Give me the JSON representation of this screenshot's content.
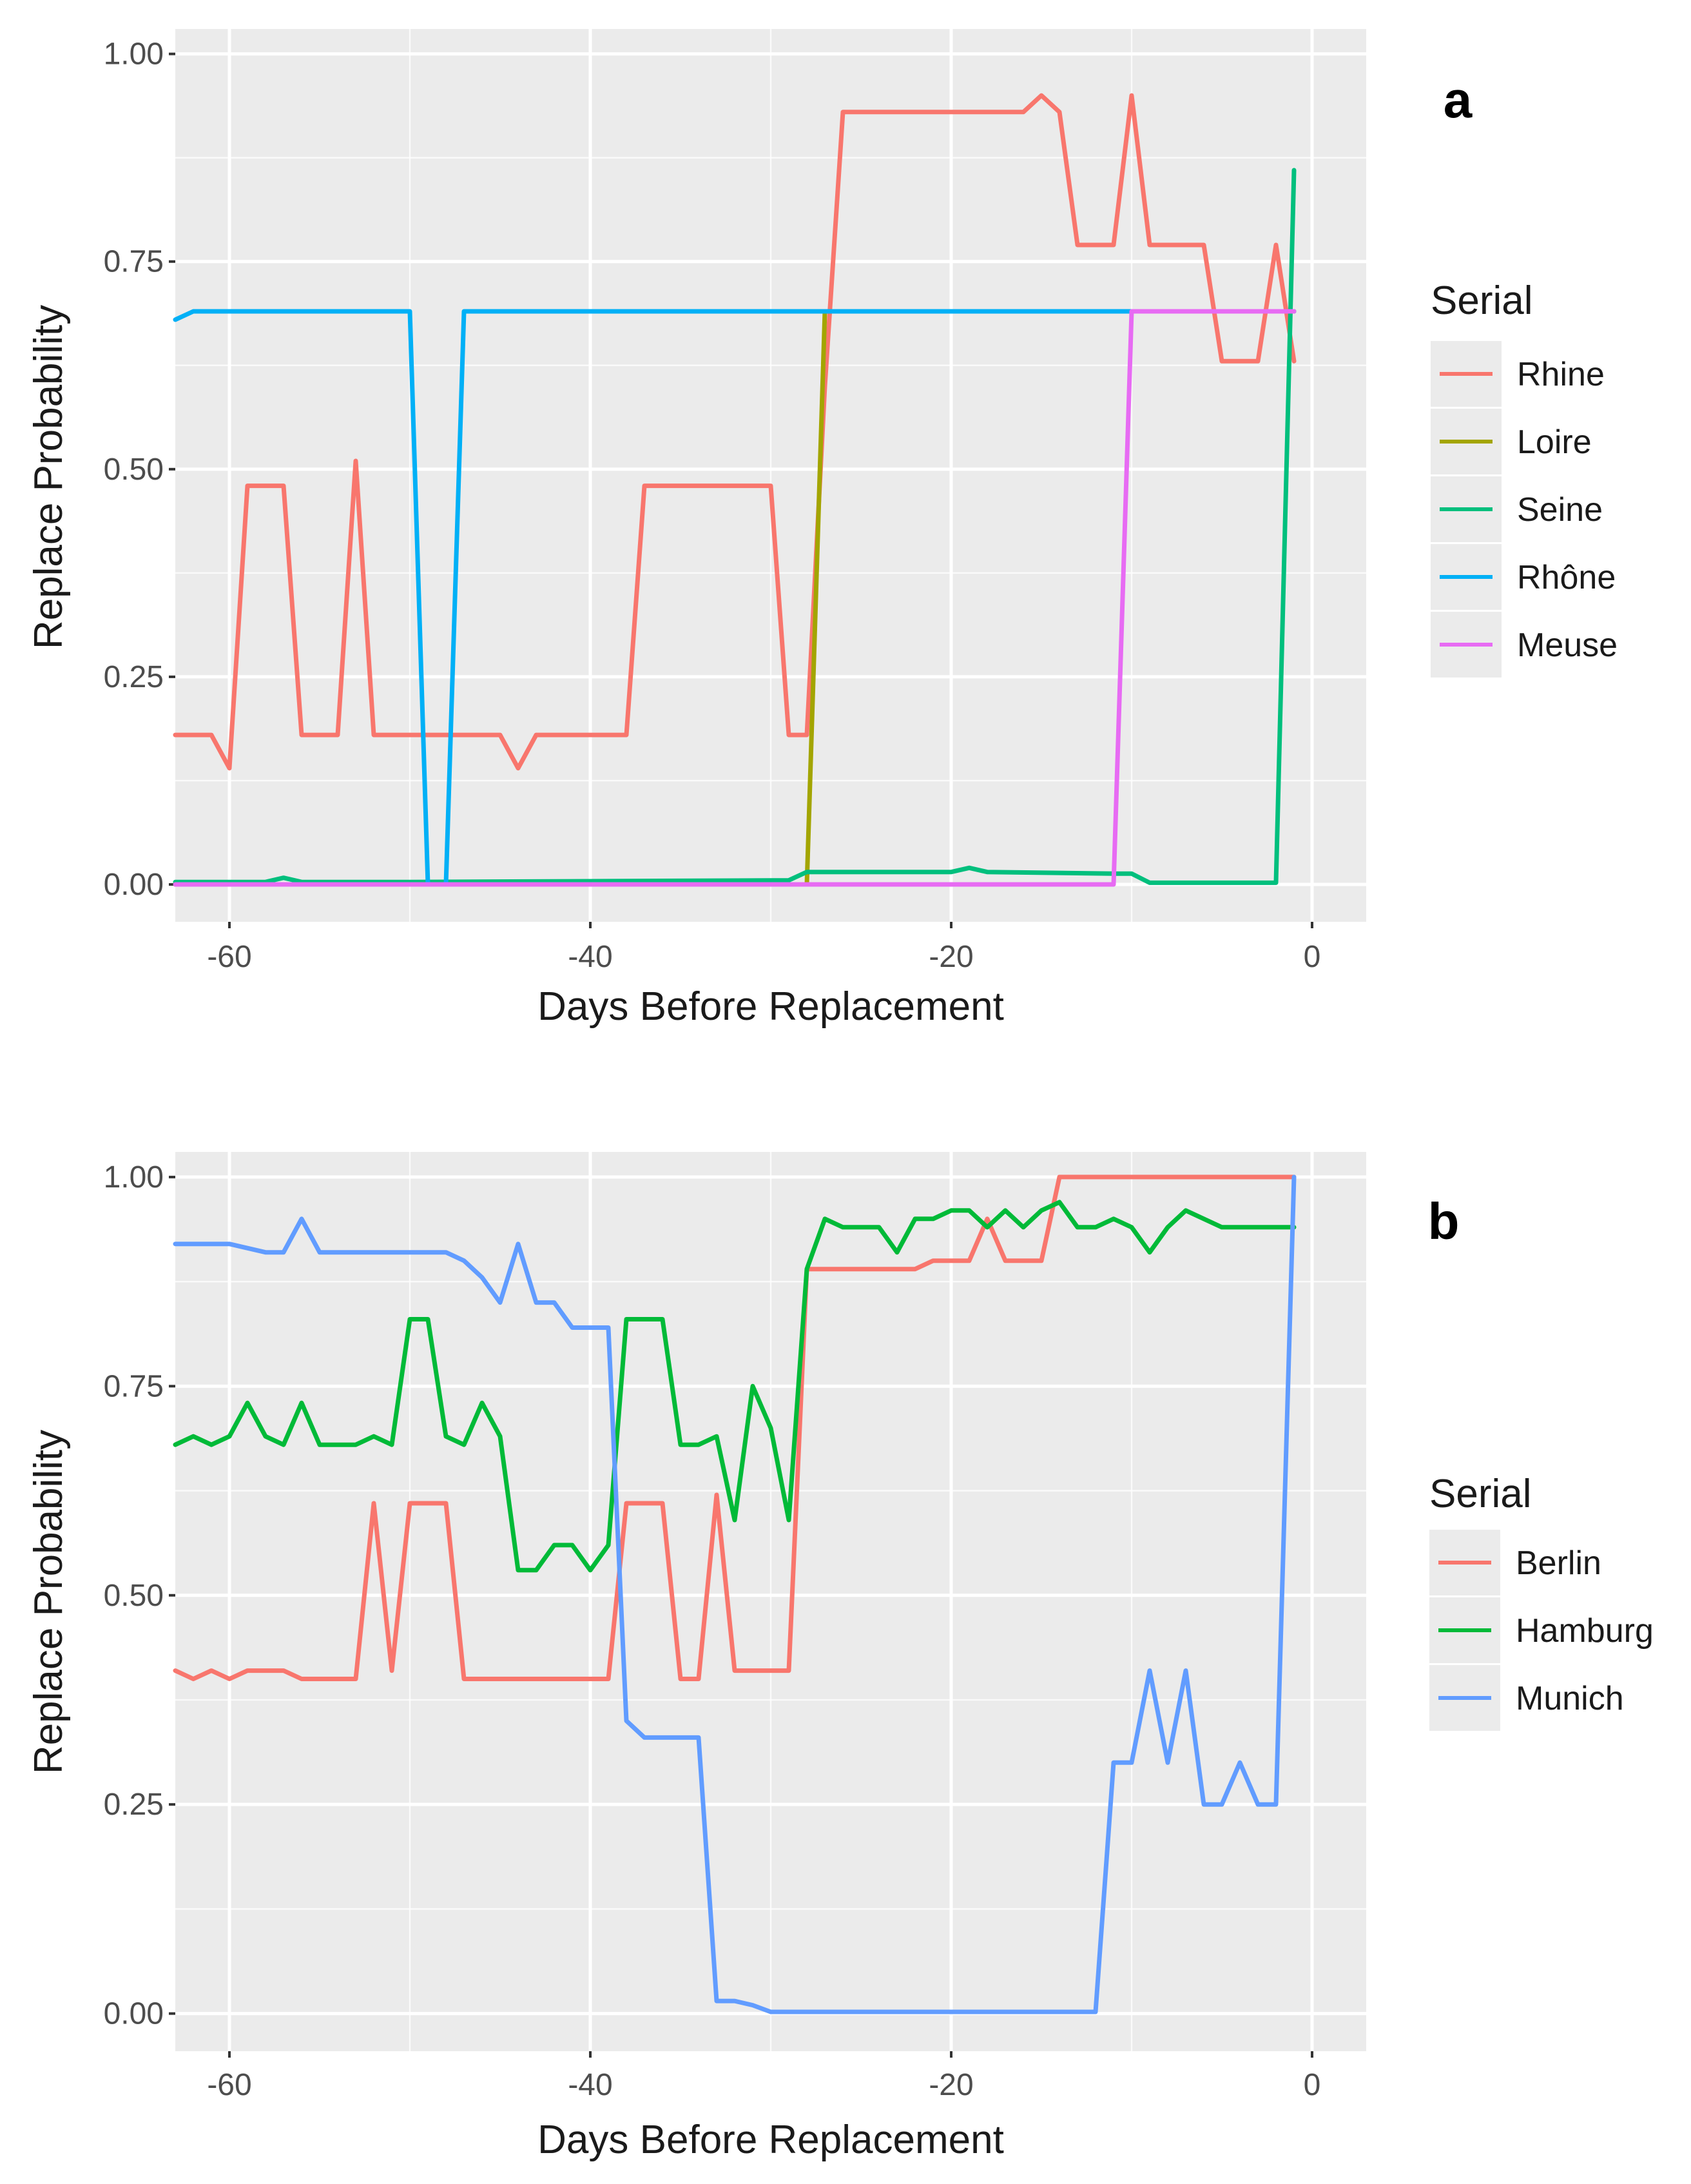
{
  "chart_data": [
    {
      "panel_label": "a",
      "type": "line",
      "xlabel": "Days Before Replacement",
      "ylabel": "Replace Probability",
      "xlim": [
        -63,
        3
      ],
      "ylim": [
        -0.045,
        1.03
      ],
      "xticks": [
        -60,
        -40,
        -20,
        0
      ],
      "xtick_labels": [
        "-60",
        "-40",
        "-20",
        "0"
      ],
      "yticks": [
        0,
        0.25,
        0.5,
        0.75,
        1
      ],
      "ytick_labels": [
        "0.00",
        "0.25",
        "0.50",
        "0.75",
        "1.00"
      ],
      "legend_title": "Serial",
      "legend_position": "right",
      "series": [
        {
          "name": "Rhine",
          "color": "#f8766d",
          "x": [
            -63,
            -61,
            -60,
            -59,
            -57,
            -56,
            -54,
            -53,
            -52,
            -45,
            -44,
            -43,
            -38,
            -37,
            -30,
            -29,
            -28,
            -27,
            -26,
            -16,
            -15,
            -14,
            -13,
            -11,
            -10,
            -9,
            -6,
            -5,
            -3,
            -2,
            -1
          ],
          "y": [
            0.18,
            0.18,
            0.14,
            0.48,
            0.48,
            0.18,
            0.18,
            0.51,
            0.18,
            0.18,
            0.14,
            0.18,
            0.18,
            0.48,
            0.48,
            0.18,
            0.18,
            0.6,
            0.93,
            0.93,
            0.95,
            0.93,
            0.77,
            0.77,
            0.95,
            0.77,
            0.77,
            0.63,
            0.63,
            0.77,
            0.63
          ]
        },
        {
          "name": "Loire",
          "color": "#a3a500",
          "x": [
            -63,
            -28,
            -27,
            -1
          ],
          "y": [
            0.0,
            0.0,
            0.69,
            0.69
          ]
        },
        {
          "name": "Seine",
          "color": "#00bf7d",
          "x": [
            -63,
            -58,
            -57,
            -56,
            -50,
            -29,
            -28,
            -20,
            -19,
            -18,
            -11,
            -10,
            -9,
            -2,
            -1
          ],
          "y": [
            0.003,
            0.003,
            0.008,
            0.003,
            0.003,
            0.005,
            0.015,
            0.015,
            0.02,
            0.015,
            0.013,
            0.013,
            0.002,
            0.002,
            0.86
          ]
        },
        {
          "name": "Rhône",
          "color": "#00b0f6",
          "x": [
            -63,
            -62,
            -50,
            -49,
            -48,
            -47,
            -1
          ],
          "y": [
            0.68,
            0.69,
            0.69,
            0.0,
            0.0,
            0.69,
            0.69
          ]
        },
        {
          "name": "Meuse",
          "color": "#e76bf3",
          "x": [
            -63,
            -11,
            -10,
            -1
          ],
          "y": [
            0.0,
            0.0,
            0.69,
            0.69
          ]
        }
      ]
    },
    {
      "panel_label": "b",
      "type": "line",
      "xlabel": "Days Before Replacement",
      "ylabel": "Replace Probability",
      "xlim": [
        -63,
        3
      ],
      "ylim": [
        -0.045,
        1.03
      ],
      "xticks": [
        -60,
        -40,
        -20,
        0
      ],
      "xtick_labels": [
        "-60",
        "-40",
        "-20",
        "0"
      ],
      "yticks": [
        0,
        0.25,
        0.5,
        0.75,
        1
      ],
      "ytick_labels": [
        "0.00",
        "0.25",
        "0.50",
        "0.75",
        "1.00"
      ],
      "legend_title": "Serial",
      "legend_position": "right",
      "series": [
        {
          "name": "Berlin",
          "color": "#f8766d",
          "x": [
            -63,
            -62,
            -61,
            -60,
            -59,
            -57,
            -56,
            -55,
            -54,
            -53,
            -52,
            -51,
            -50,
            -48,
            -47,
            -46,
            -39,
            -38,
            -36,
            -35,
            -34,
            -33,
            -32,
            -30,
            -29,
            -28,
            -27,
            -22,
            -21,
            -19,
            -18,
            -17,
            -15,
            -14,
            -1
          ],
          "y": [
            0.41,
            0.4,
            0.41,
            0.4,
            0.41,
            0.41,
            0.4,
            0.4,
            0.4,
            0.4,
            0.61,
            0.41,
            0.61,
            0.61,
            0.4,
            0.4,
            0.4,
            0.61,
            0.61,
            0.4,
            0.4,
            0.62,
            0.41,
            0.41,
            0.41,
            0.89,
            0.89,
            0.89,
            0.9,
            0.9,
            0.95,
            0.9,
            0.9,
            1.0,
            1.0
          ]
        },
        {
          "name": "Hamburg",
          "color": "#00ba38",
          "x": [
            -63,
            -62,
            -61,
            -60,
            -59,
            -58,
            -57,
            -56,
            -55,
            -54,
            -53,
            -52,
            -51,
            -50,
            -49,
            -48,
            -47,
            -46,
            -45,
            -44,
            -43,
            -42,
            -41,
            -40,
            -39,
            -38,
            -37,
            -36,
            -35,
            -34,
            -33,
            -32,
            -31,
            -30,
            -29,
            -28,
            -27,
            -26,
            -25,
            -24,
            -23,
            -22,
            -21,
            -20,
            -19,
            -18,
            -17,
            -16,
            -15,
            -14,
            -13,
            -12,
            -11,
            -10,
            -9,
            -8,
            -7,
            -6,
            -5,
            -4,
            -3,
            -2,
            -1
          ],
          "y": [
            0.68,
            0.69,
            0.68,
            0.69,
            0.73,
            0.69,
            0.68,
            0.73,
            0.68,
            0.68,
            0.68,
            0.69,
            0.68,
            0.83,
            0.83,
            0.69,
            0.68,
            0.73,
            0.69,
            0.53,
            0.53,
            0.56,
            0.56,
            0.53,
            0.56,
            0.83,
            0.83,
            0.83,
            0.68,
            0.68,
            0.69,
            0.59,
            0.75,
            0.7,
            0.59,
            0.89,
            0.95,
            0.94,
            0.94,
            0.94,
            0.91,
            0.95,
            0.95,
            0.96,
            0.96,
            0.94,
            0.96,
            0.94,
            0.96,
            0.97,
            0.94,
            0.94,
            0.95,
            0.94,
            0.91,
            0.94,
            0.96,
            0.95,
            0.94,
            0.94,
            0.94,
            0.94,
            0.94
          ]
        },
        {
          "name": "Munich",
          "color": "#619cff",
          "x": [
            -63,
            -61,
            -60,
            -58,
            -57,
            -56,
            -55,
            -48,
            -47,
            -46,
            -45,
            -44,
            -43,
            -42,
            -41,
            -40,
            -39,
            -38,
            -37,
            -36,
            -35,
            -34,
            -33,
            -32,
            -31,
            -30,
            -29,
            -28,
            -27,
            -26,
            -25,
            -24,
            -23,
            -22,
            -21,
            -20,
            -19,
            -18,
            -17,
            -16,
            -15,
            -14,
            -13,
            -12,
            -11,
            -10,
            -9,
            -8,
            -7,
            -6,
            -5,
            -4,
            -3,
            -2,
            -1
          ],
          "y": [
            0.92,
            0.92,
            0.92,
            0.91,
            0.91,
            0.95,
            0.91,
            0.91,
            0.9,
            0.88,
            0.85,
            0.92,
            0.85,
            0.85,
            0.82,
            0.82,
            0.82,
            0.35,
            0.33,
            0.33,
            0.33,
            0.33,
            0.015,
            0.015,
            0.01,
            0.002,
            0.002,
            0.002,
            0.002,
            0.002,
            0.002,
            0.002,
            0.002,
            0.002,
            0.002,
            0.002,
            0.002,
            0.002,
            0.002,
            0.002,
            0.002,
            0.002,
            0.002,
            0.002,
            0.3,
            0.3,
            0.41,
            0.3,
            0.41,
            0.25,
            0.25,
            0.3,
            0.25,
            0.25,
            1.0
          ]
        }
      ]
    }
  ]
}
